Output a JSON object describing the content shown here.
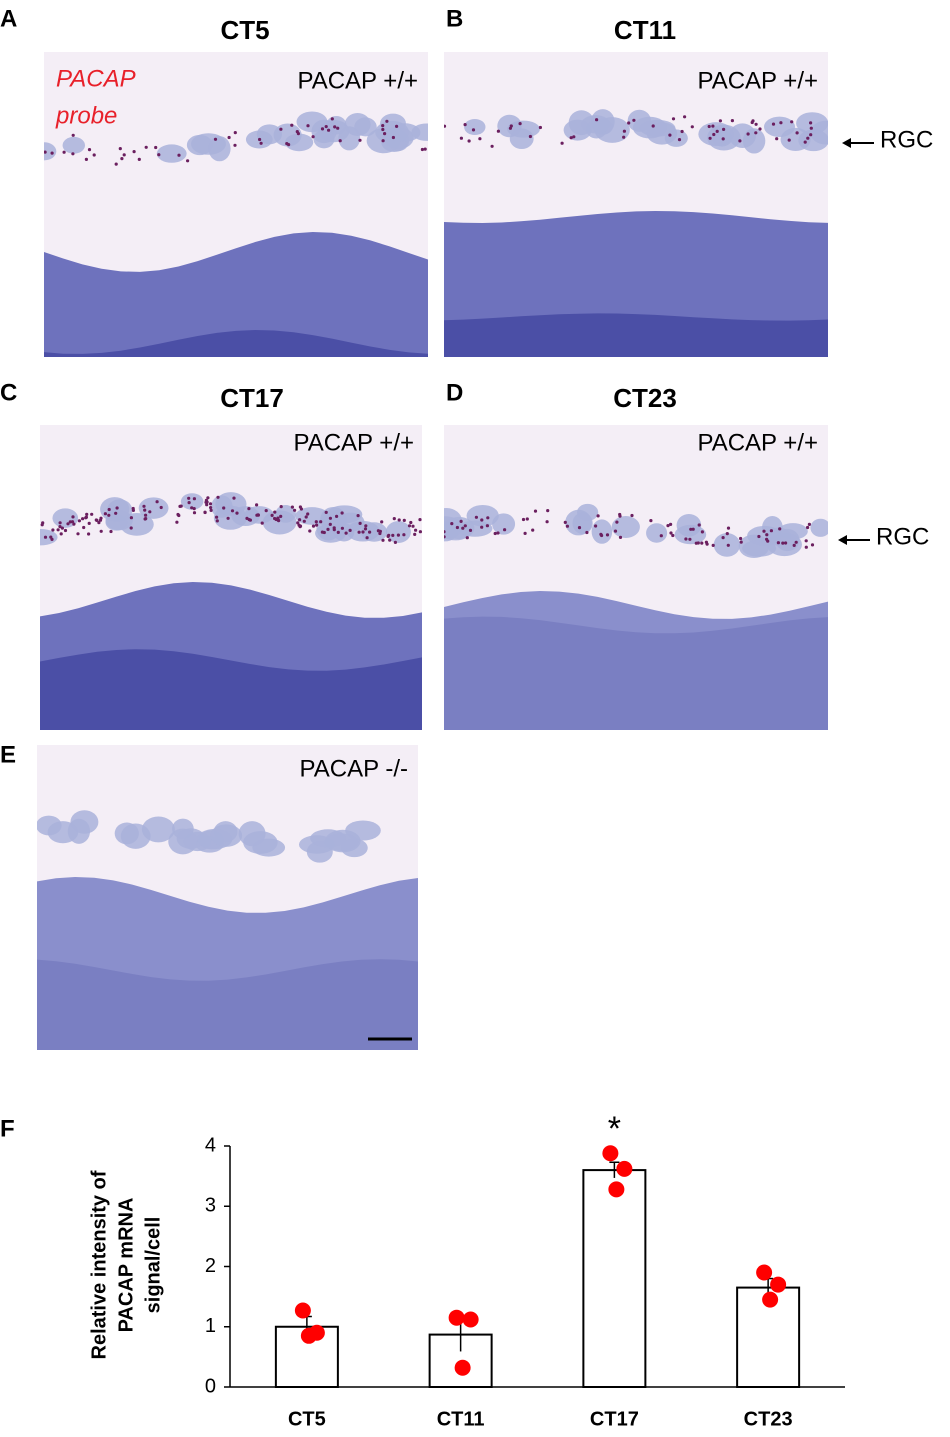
{
  "panels": [
    {
      "letter": "A",
      "title": "CT5",
      "genotype": "PACAP +/+",
      "probe_label": [
        "PACAP",
        "probe"
      ]
    },
    {
      "letter": "B",
      "title": "CT11",
      "genotype": "PACAP +/+",
      "annotation": "RGC"
    },
    {
      "letter": "C",
      "title": "CT17",
      "genotype": "PACAP +/+"
    },
    {
      "letter": "D",
      "title": "CT23",
      "genotype": "PACAP +/+",
      "annotation": "RGC"
    },
    {
      "letter": "E",
      "genotype": "PACAP -/-"
    }
  ],
  "chart_letter": "F",
  "chart_data": {
    "type": "bar",
    "y_label": [
      "Relative intensity of",
      "PACAP mRNA",
      "signal/cell"
    ],
    "categories": [
      "CT5",
      "CT11",
      "CT17",
      "CT23"
    ],
    "values": [
      1.0,
      0.87,
      3.6,
      1.65
    ],
    "errors": [
      0.17,
      0.28,
      0.13,
      0.15
    ],
    "points": [
      [
        1.27,
        0.9,
        0.85
      ],
      [
        1.15,
        1.12,
        0.32
      ],
      [
        3.88,
        3.62,
        3.28
      ],
      [
        1.9,
        1.7,
        1.45
      ]
    ],
    "annotations": [
      {
        "category": 2,
        "text": "*"
      }
    ],
    "color": "#ffffff",
    "edge_color": "#000000",
    "point_color": "#ff0000",
    "ylim": [
      0,
      4
    ],
    "yticks": [
      0,
      1,
      2,
      3,
      4
    ]
  }
}
